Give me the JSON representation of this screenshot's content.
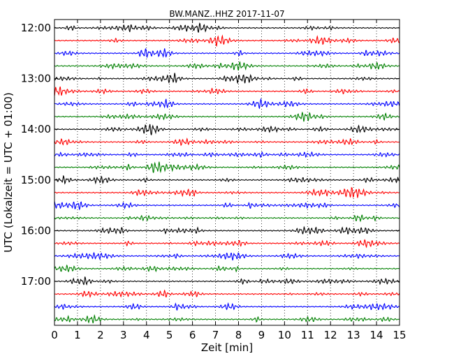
{
  "chart_data": {
    "type": "line",
    "title": "BW.MANZ..HHZ 2017-11-07",
    "xlabel": "Zeit  [min]",
    "ylabel": "UTC (Lokalzeit = UTC + 01:00)",
    "xlim": [
      0,
      15
    ],
    "x_ticks": [
      "0",
      "1",
      "2",
      "3",
      "4",
      "5",
      "6",
      "7",
      "8",
      "9",
      "10",
      "11",
      "12",
      "13",
      "14",
      "15"
    ],
    "y_tick_labels": [
      "12:00",
      "13:00",
      "14:00",
      "15:00",
      "16:00",
      "17:00"
    ],
    "grid": "vertical dotted lines at each minute",
    "trace_start_minutes_utc_hour_12": [
      0,
      15,
      30,
      45,
      60,
      75,
      90,
      105,
      120,
      135,
      150,
      165,
      180,
      195,
      210,
      225,
      240,
      255,
      270,
      285,
      300,
      315,
      330,
      345
    ],
    "trace_colors": [
      "#000000",
      "#ff0000",
      "#0000ff",
      "#008000"
    ],
    "trace_count": 24
  }
}
